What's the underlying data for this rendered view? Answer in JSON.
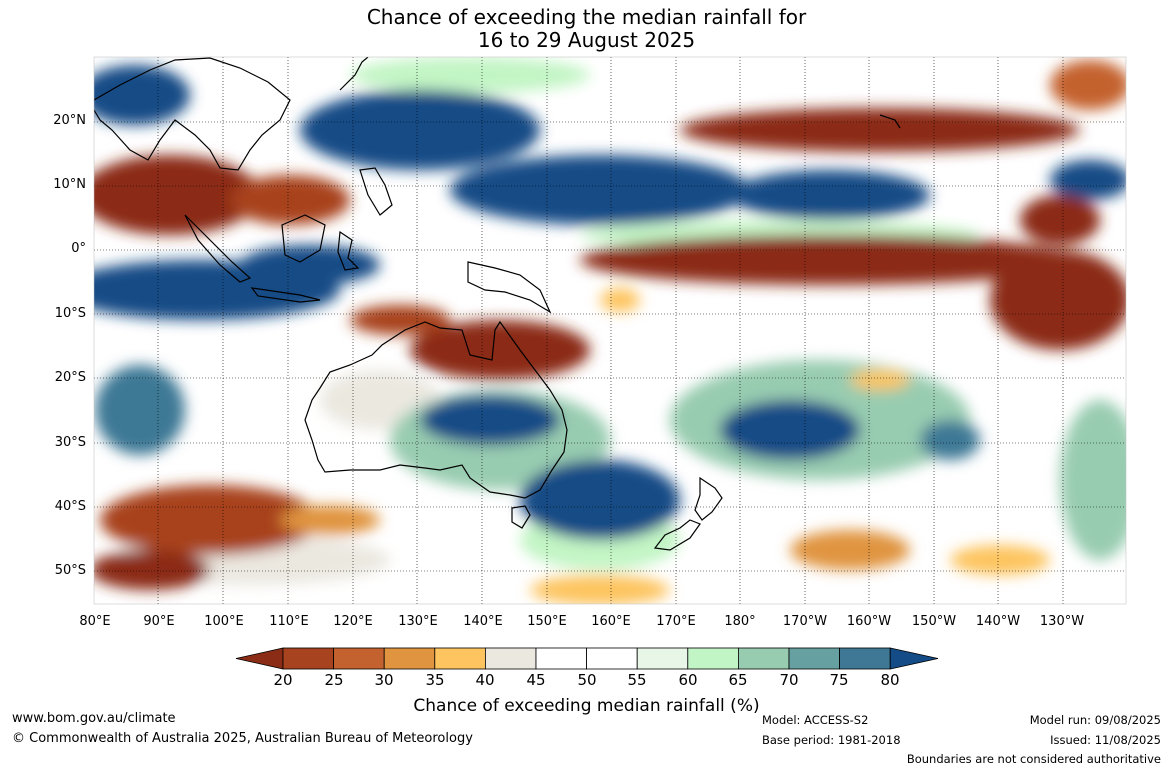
{
  "title": {
    "line1": "Chance of exceeding the median rainfall for",
    "line2": "16 to 29 August 2025"
  },
  "axes": {
    "lat_labels": [
      "20°N",
      "10°N",
      "0°",
      "10°S",
      "20°S",
      "30°S",
      "40°S",
      "50°S"
    ],
    "lon_labels": [
      "80°E",
      "90°E",
      "100°E",
      "110°E",
      "120°E",
      "130°E",
      "140°E",
      "150°E",
      "160°E",
      "170°E",
      "180°",
      "170°W",
      "160°W",
      "150°W",
      "140°W",
      "130°W"
    ]
  },
  "colorbar": {
    "title": "Chance of exceeding median rainfall (%)",
    "ticks": [
      "20",
      "25",
      "30",
      "35",
      "40",
      "45",
      "50",
      "55",
      "60",
      "65",
      "70",
      "75",
      "80"
    ],
    "colors": [
      "#8b2c16",
      "#a8431f",
      "#c4622f",
      "#e0943f",
      "#fdc45f",
      "#ebe8e0",
      "#ffffff",
      "#ffffff",
      "#e8f6e8",
      "#c2f5c5",
      "#98ccb0",
      "#66a0a0",
      "#3e7895",
      "#134c86"
    ]
  },
  "footer": {
    "website": "www.bom.gov.au/climate",
    "copyright": "© Commonwealth of Australia 2025, Australian Bureau of Meteorology",
    "model": "Model: ACCESS-S2",
    "base_period": "Base period: 1981-2018",
    "model_run": "Model run: 09/08/2025",
    "issued": "Issued: 11/08/2025",
    "disclaimer": "Boundaries are not considered authoritative"
  }
}
